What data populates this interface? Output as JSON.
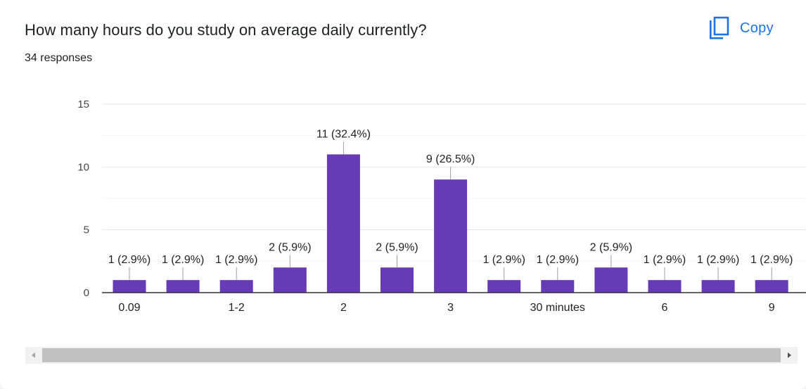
{
  "card": {
    "question": "How many hours do you study on average daily currently?",
    "responses": "34 responses",
    "copy_label": "Copy"
  },
  "colors": {
    "bar": "#673ab7",
    "accent": "#1a73e8",
    "text": "#202124",
    "grid": "#ebebeb",
    "axis": "#333333"
  },
  "icons": {
    "copy": "copy-icon",
    "scroll_left": "triangle-left-icon",
    "scroll_right": "triangle-right-icon"
  },
  "chart_data": {
    "type": "bar",
    "categories": [
      "0.09",
      "",
      "1-2",
      "",
      "2",
      "",
      "3",
      "",
      "30 minutes",
      "",
      "6",
      "",
      "9"
    ],
    "values": [
      1,
      1,
      1,
      2,
      11,
      2,
      9,
      1,
      1,
      2,
      1,
      1,
      1
    ],
    "data_labels": [
      "1 (2.9%)",
      "1 (2.9%)",
      "1 (2.9%)",
      "2 (5.9%)",
      "11 (32.4%)",
      "2 (5.9%)",
      "9 (26.5%)",
      "1 (2.9%)",
      "1 (2.9%)",
      "2 (5.9%)",
      "1 (2.9%)",
      "1 (2.9%)",
      "1 (2.9%)"
    ],
    "ylim": [
      0,
      15
    ],
    "yticks": [
      0,
      5,
      10,
      15
    ],
    "grid": true
  }
}
